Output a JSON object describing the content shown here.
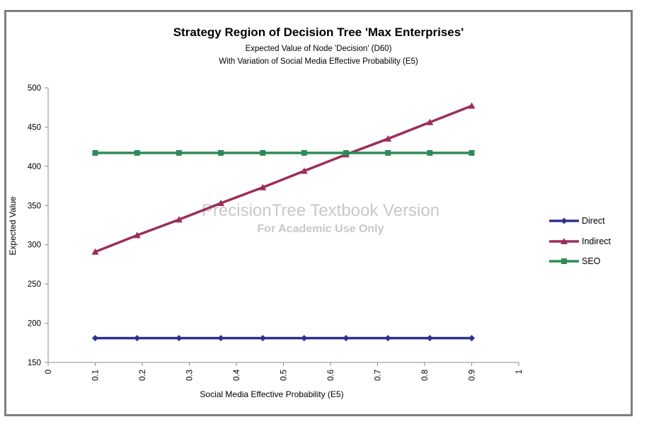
{
  "chart_data": {
    "type": "line",
    "title": "Strategy Region of Decision Tree 'Max Enterprises'",
    "subtitle_lines": [
      "Expected Value of Node 'Decision' (D60)",
      "With Variation of Social Media Effective Probability (E5)"
    ],
    "xlabel": "Social Media Effective Probability (E5)",
    "ylabel": "Expected Value",
    "xlim": [
      0,
      1
    ],
    "ylim": [
      150,
      500
    ],
    "x_ticks": [
      "0",
      "0.1",
      "0.2",
      "0.3",
      "0.4",
      "0.5",
      "0.6",
      "0.7",
      "0.8",
      "0.9",
      "1"
    ],
    "y_ticks": [
      "150",
      "200",
      "250",
      "300",
      "350",
      "400",
      "450",
      "500"
    ],
    "grid": false,
    "legend_position": "right",
    "x": [
      0.1,
      0.189,
      0.278,
      0.367,
      0.456,
      0.544,
      0.633,
      0.722,
      0.811,
      0.9
    ],
    "series": [
      {
        "name": "Direct",
        "color": "#2e3192",
        "marker": "diamond",
        "values": [
          181,
          181,
          181,
          181,
          181,
          181,
          181,
          181,
          181,
          181
        ]
      },
      {
        "name": "Indirect",
        "color": "#9b2d5e",
        "marker": "triangle",
        "values": [
          291,
          312,
          332,
          353,
          373,
          394,
          415,
          435,
          456,
          477
        ]
      },
      {
        "name": "SEO",
        "color": "#2e8b57",
        "marker": "square",
        "values": [
          417,
          417,
          417,
          417,
          417,
          417,
          417,
          417,
          417,
          417
        ]
      }
    ],
    "watermark": [
      "PrecisionTree Textbook Version",
      "For Academic Use Only"
    ]
  }
}
